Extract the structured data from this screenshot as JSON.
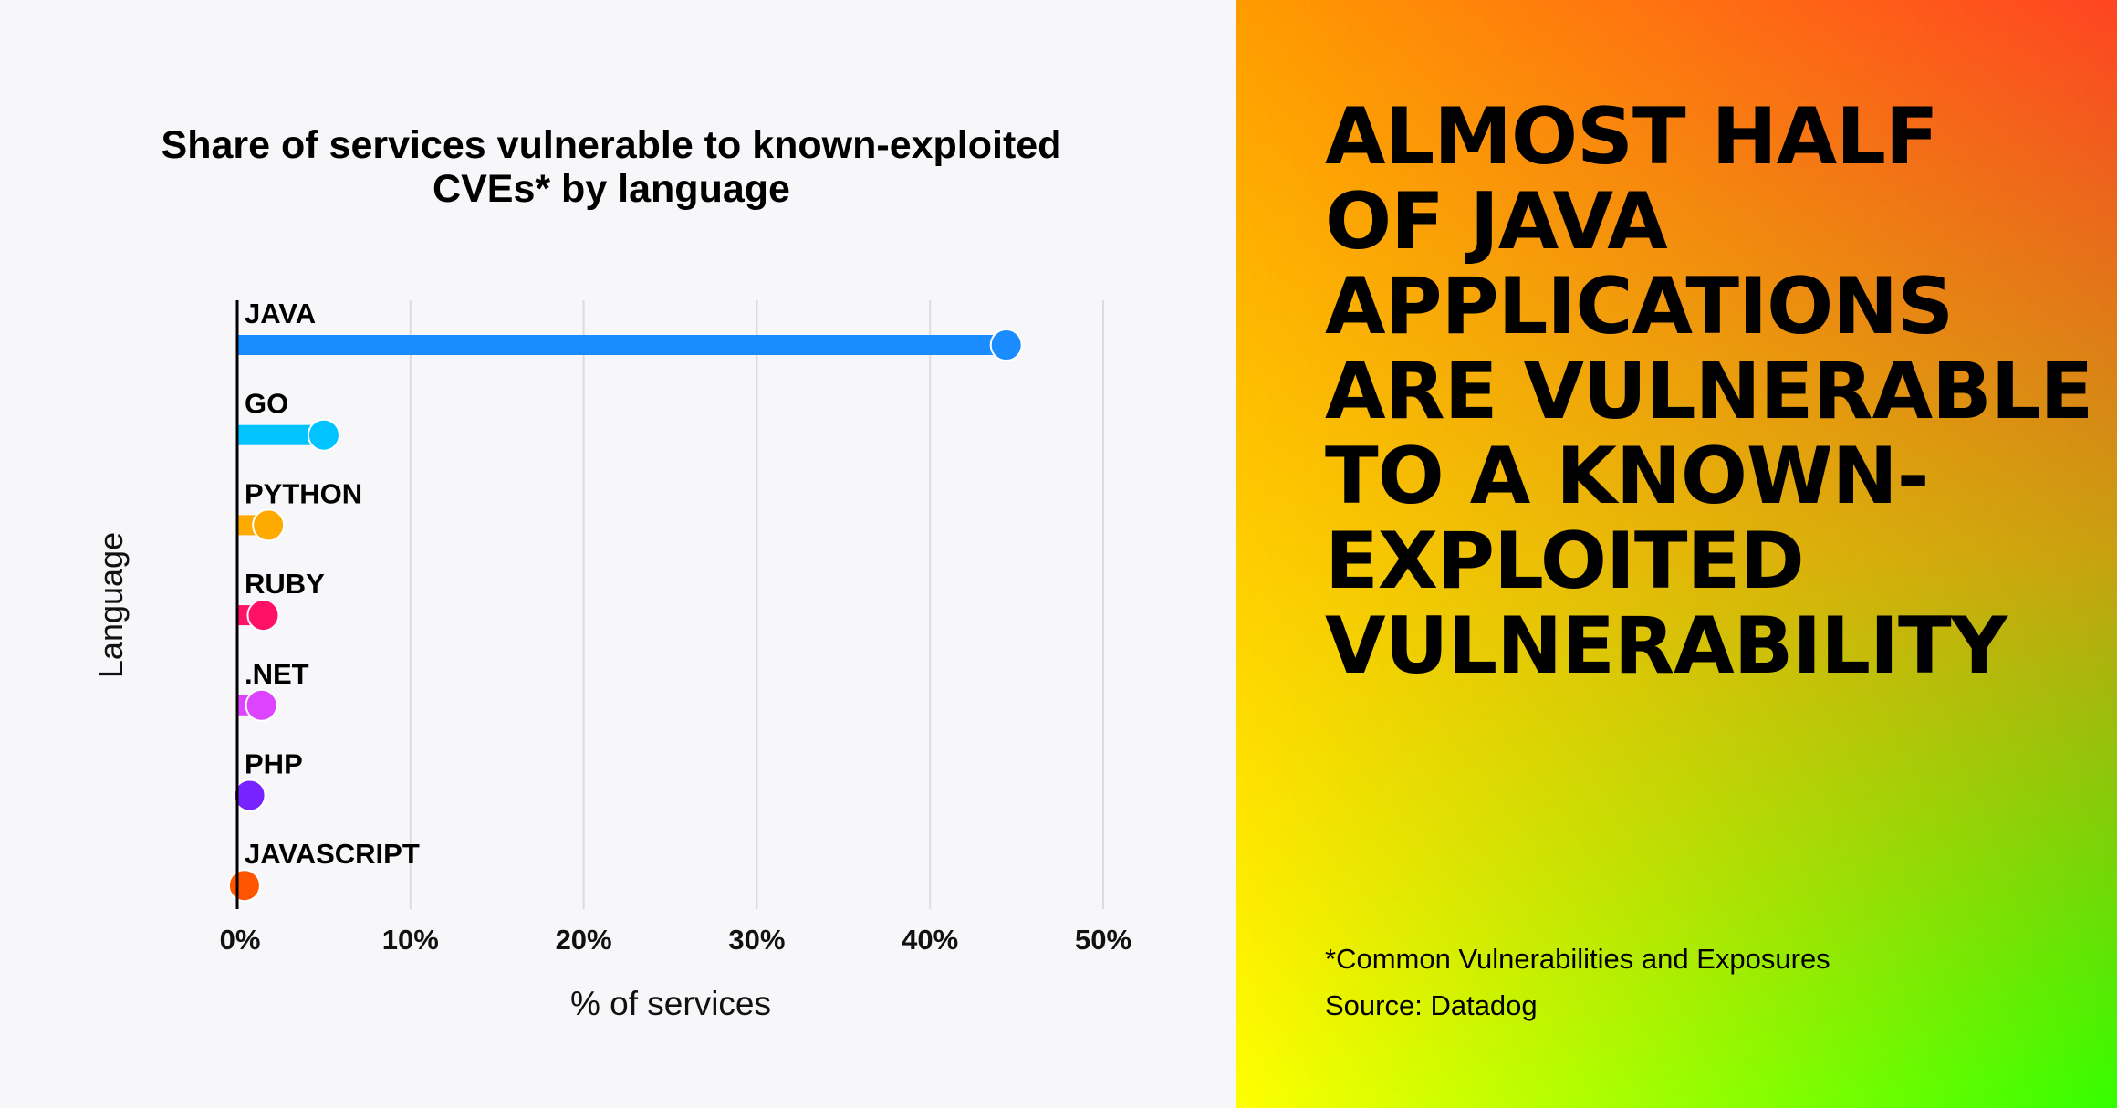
{
  "chart_data": {
    "type": "bar",
    "orientation": "horizontal",
    "title": "Share of services vulnerable to known-exploited CVEs* by language",
    "title_lines": [
      "Share of services vulnerable to known-exploited",
      "CVEs* by language"
    ],
    "xlabel": "% of services",
    "ylabel": "Language",
    "xlim": [
      0,
      50
    ],
    "xticks": [
      0,
      10,
      20,
      30,
      40,
      50
    ],
    "xtick_labels": [
      "0%",
      "10%",
      "20%",
      "30%",
      "40%",
      "50%"
    ],
    "grid": "vertical",
    "categories": [
      "JAVA",
      "GO",
      "PYTHON",
      "RUBY",
      ".NET",
      "PHP",
      "JAVASCRIPT"
    ],
    "values": [
      44.4,
      5.0,
      1.8,
      1.5,
      1.4,
      0.4,
      0.1
    ],
    "colors": [
      "#1a8cff",
      "#00c3ff",
      "#ffaa00",
      "#ff1166",
      "#dd44ff",
      "#7722ff",
      "#ff5500"
    ]
  },
  "headline": [
    "ALMOST HALF",
    "OF JAVA",
    "APPLICATIONS",
    "ARE VULNERABLE",
    "TO A KNOWN-",
    "EXPLOITED",
    "VULNERABILITY"
  ],
  "footnote": "*Common Vulnerabilities and Exposures",
  "source": "Source: Datadog"
}
